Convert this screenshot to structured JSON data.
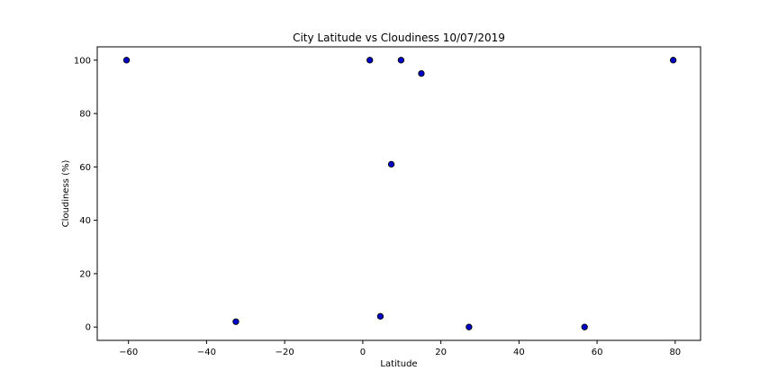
{
  "chart_data": {
    "type": "scatter",
    "title": "City Latitude vs Cloudiness 10/07/2019",
    "xlabel": "Latitude",
    "ylabel": "Cloudiness (%)",
    "xlim": [
      -68,
      86.5
    ],
    "ylim": [
      -5,
      105
    ],
    "xticks": [
      -60,
      -40,
      -20,
      0,
      20,
      40,
      60,
      80
    ],
    "yticks": [
      0,
      20,
      40,
      60,
      80,
      100
    ],
    "xtick_labels": [
      "−60",
      "−40",
      "−20",
      "0",
      "20",
      "40",
      "60",
      "80"
    ],
    "ytick_labels": [
      "0",
      "20",
      "40",
      "60",
      "80",
      "100"
    ],
    "grid": false,
    "marker_color": "#0000cd",
    "marker_edge_color": "#000000",
    "points": [
      {
        "x": -60.5,
        "y": 100
      },
      {
        "x": -32.5,
        "y": 2
      },
      {
        "x": 1.8,
        "y": 100
      },
      {
        "x": 4.5,
        "y": 4
      },
      {
        "x": 7.3,
        "y": 61
      },
      {
        "x": 9.8,
        "y": 100
      },
      {
        "x": 15.0,
        "y": 95
      },
      {
        "x": 27.2,
        "y": 0
      },
      {
        "x": 56.8,
        "y": 0
      },
      {
        "x": 79.5,
        "y": 100
      }
    ]
  }
}
